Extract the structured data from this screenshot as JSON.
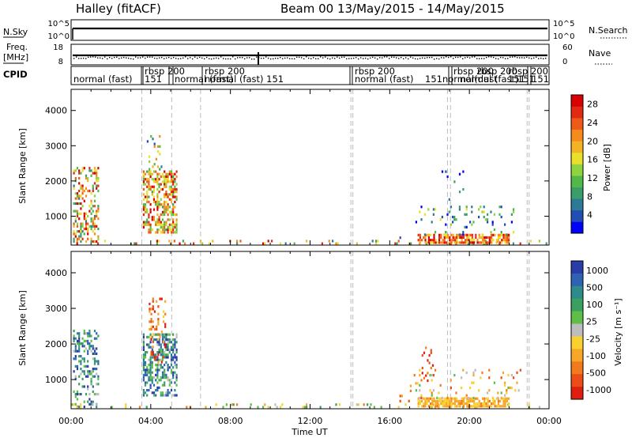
{
  "header": {
    "station": "Halley (fitACF)",
    "beam_date": "Beam 00  13/May/2015 - 14/May/2015"
  },
  "panels": {
    "nsky": {
      "label": "N.Sky",
      "left_ticks": [
        "10^5",
        "10^0"
      ],
      "right_ticks": [
        "10^5",
        "10^0"
      ],
      "right_label": "N.Search"
    },
    "freq": {
      "label_line1": "Freq.",
      "label_line2": "[MHz]",
      "left_ticks": [
        "18",
        "8"
      ],
      "right_ticks": [
        "60",
        "0"
      ],
      "right_label": "Nave"
    },
    "cpid": {
      "label": "CPID",
      "segments": [
        {
          "text": "normal (fast)"
        },
        {
          "text": "rbsp  200"
        },
        {
          "text": "151"
        },
        {
          "text": "normal (fast)"
        },
        {
          "text": "rbsp  200"
        },
        {
          "text": "normal (fast)  151"
        },
        {
          "text": "rbsp  200"
        },
        {
          "text": "normal (fast)"
        },
        {
          "text": "151normal(dust"
        },
        {
          "text": "rbsp 200"
        },
        {
          "text": "rbsp 200"
        },
        {
          "text": "rbsp 200"
        },
        {
          "text": "normal (fast)"
        },
        {
          "text": "151"
        },
        {
          "text": "151"
        },
        {
          "text": "151"
        }
      ]
    }
  },
  "chart_data": [
    {
      "type": "heatmap",
      "name": "power",
      "ylabel": "Slant Range [km]",
      "ylim": [
        180,
        4600
      ],
      "yticks": [
        "1000",
        "2000",
        "3000",
        "4000"
      ],
      "xlim_hours": [
        0,
        24
      ],
      "colorbar": {
        "label": "Power [dB]",
        "ticks": [
          "4",
          "8",
          "12",
          "16",
          "20",
          "24",
          "28"
        ],
        "range": [
          0,
          30
        ],
        "colors": [
          "#0000ff",
          "#1f4fb5",
          "#2d7a96",
          "#3a9e6a",
          "#52b848",
          "#8fd43e",
          "#e8e02a",
          "#f2b424",
          "#f58a1e",
          "#ee5a18",
          "#e22a12",
          "#d80000"
        ]
      },
      "regions": [
        {
          "t": [
            0.1,
            1.4
          ],
          "r": [
            250,
            2400
          ],
          "density": 0.35,
          "level": [
            0.2,
            1.0
          ]
        },
        {
          "t": [
            3.6,
            5.3
          ],
          "r": [
            550,
            2300
          ],
          "density": 0.55,
          "level": [
            0.3,
            1.0
          ]
        },
        {
          "t": [
            3.8,
            4.6
          ],
          "r": [
            2300,
            3300
          ],
          "density": 0.12,
          "level": [
            0.1,
            0.7
          ]
        },
        {
          "t": [
            0.0,
            24.0
          ],
          "r": [
            190,
            330
          ],
          "density": 0.12,
          "level": [
            0.2,
            1.0
          ]
        },
        {
          "t": [
            16.4,
            17.4
          ],
          "r": [
            400,
            1000
          ],
          "density": 0.06,
          "level": [
            0.0,
            0.5
          ]
        },
        {
          "t": [
            17.4,
            22.0
          ],
          "r": [
            250,
            500
          ],
          "density": 0.75,
          "level": [
            0.5,
            1.0
          ]
        },
        {
          "t": [
            17.2,
            22.6
          ],
          "r": [
            500,
            1300
          ],
          "density": 0.08,
          "level": [
            0.0,
            0.6
          ]
        },
        {
          "t": [
            18.6,
            19.8
          ],
          "r": [
            1400,
            2300
          ],
          "density": 0.05,
          "level": [
            0.0,
            0.4
          ]
        }
      ]
    },
    {
      "type": "heatmap",
      "name": "velocity",
      "ylabel": "Slant Range [km]",
      "ylim": [
        180,
        4600
      ],
      "yticks": [
        "1000",
        "2000",
        "3000",
        "4000"
      ],
      "xlim_hours": [
        0,
        24
      ],
      "xticks": [
        "00:00",
        "04:00",
        "08:00",
        "12:00",
        "16:00",
        "20:00",
        "00:00"
      ],
      "xlabel": "Time UT",
      "colorbar": {
        "label": "Velocity [m s⁻¹]",
        "ticks": [
          "1000",
          "500",
          "100",
          "25",
          "-25",
          "-100",
          "-500",
          "-1000"
        ],
        "colors": [
          "#2a3ca8",
          "#2e62b3",
          "#2f8a8c",
          "#3aa060",
          "#5fbe48",
          "#bdbdbd",
          "#f8d030",
          "#f7a628",
          "#f27a1e",
          "#ec4d16",
          "#e01e10"
        ]
      },
      "regions": [
        {
          "t": [
            0.1,
            1.4
          ],
          "r": [
            250,
            2400
          ],
          "density": 0.35,
          "level": [
            0.0,
            0.5
          ]
        },
        {
          "t": [
            3.6,
            5.3
          ],
          "r": [
            550,
            2300
          ],
          "density": 0.55,
          "level": [
            0.0,
            0.5
          ]
        },
        {
          "t": [
            3.9,
            4.7
          ],
          "r": [
            1500,
            3300
          ],
          "density": 0.18,
          "level": [
            0.6,
            1.0
          ]
        },
        {
          "t": [
            0.0,
            24.0
          ],
          "r": [
            190,
            330
          ],
          "density": 0.12,
          "level": [
            0.3,
            0.8
          ]
        },
        {
          "t": [
            16.4,
            17.4
          ],
          "r": [
            400,
            1000
          ],
          "density": 0.06,
          "level": [
            0.5,
            0.9
          ]
        },
        {
          "t": [
            17.4,
            22.0
          ],
          "r": [
            250,
            500
          ],
          "density": 0.75,
          "level": [
            0.55,
            0.75
          ]
        },
        {
          "t": [
            17.2,
            22.6
          ],
          "r": [
            500,
            1300
          ],
          "density": 0.08,
          "level": [
            0.4,
            0.9
          ]
        },
        {
          "t": [
            17.6,
            18.2
          ],
          "r": [
            1000,
            2000
          ],
          "density": 0.12,
          "level": [
            0.75,
            1.0
          ]
        }
      ]
    }
  ]
}
